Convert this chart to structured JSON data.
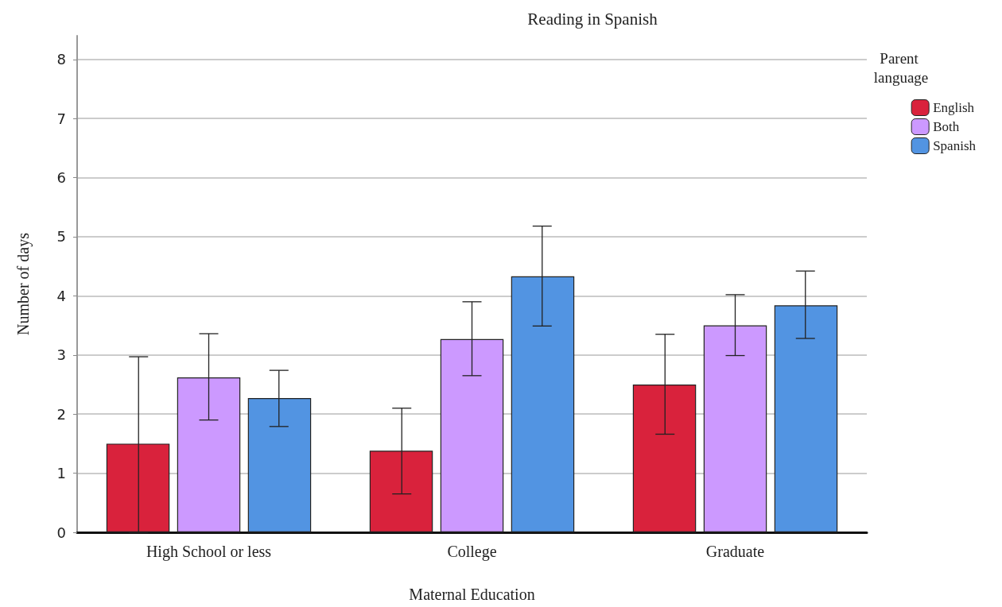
{
  "chart_data": {
    "type": "bar",
    "title": "Reading in Spanish",
    "xlabel": "Maternal Education",
    "ylabel": "Number of days",
    "legend_title": "Parent language",
    "categories": [
      "High School or less",
      "College",
      "Graduate"
    ],
    "series": [
      {
        "name": "English",
        "color": "#d9223c",
        "values": [
          1.5,
          1.38,
          2.5
        ],
        "errors": [
          [
            0,
            2.97
          ],
          [
            0.65,
            2.1
          ],
          [
            1.66,
            3.35
          ]
        ]
      },
      {
        "name": "Both",
        "color": "#cc99ff",
        "values": [
          2.62,
          3.27,
          3.5
        ],
        "errors": [
          [
            1.9,
            3.36
          ],
          [
            2.65,
            3.9
          ],
          [
            2.99,
            4.02
          ]
        ]
      },
      {
        "name": "Spanish",
        "color": "#5294e2",
        "values": [
          2.27,
          4.33,
          3.84
        ],
        "errors": [
          [
            1.79,
            2.74
          ],
          [
            3.49,
            5.18
          ],
          [
            3.28,
            4.42
          ]
        ]
      }
    ],
    "ylim": [
      0,
      8.4
    ],
    "yticks": [
      0,
      1,
      2,
      3,
      4,
      5,
      6,
      7,
      8
    ],
    "grid": "y",
    "legend": "top right"
  }
}
